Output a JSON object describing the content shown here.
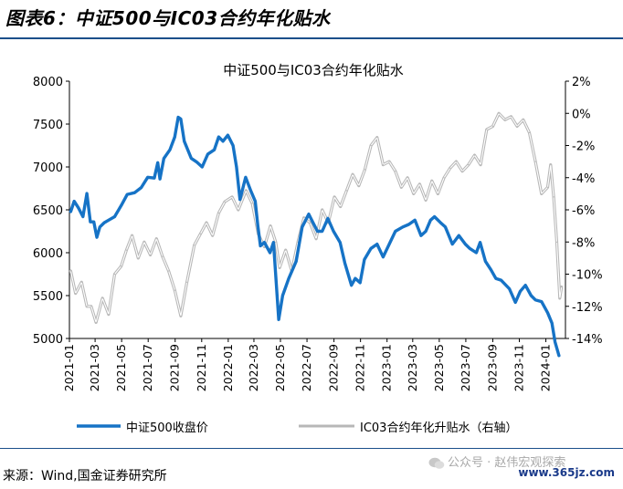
{
  "figure_title": "图表6：中证500与IC03合约年化贴水",
  "source": "来源：Wind,国金证券研究所",
  "watermark_text": "公众号 · 赵伟宏观探索",
  "site_stamp": "www.365jz.com",
  "colors": {
    "blue": "#1673c6",
    "gray": "#b7b7b7",
    "title_rule": "#1b4f8a"
  },
  "chart_data": {
    "type": "line",
    "title": "中证500与IC03合约年化贴水",
    "x_type": "date",
    "xlim": [
      "2021-01-01",
      "2024-02-15"
    ],
    "x_ticks": [
      "2021-01",
      "2021-03",
      "2021-05",
      "2021-07",
      "2021-09",
      "2021-11",
      "2022-01",
      "2022-03",
      "2022-05",
      "2022-07",
      "2022-09",
      "2022-11",
      "2023-01",
      "2023-03",
      "2023-05",
      "2023-07",
      "2023-09",
      "2023-11",
      "2024-01"
    ],
    "y_left": {
      "lim": [
        5000,
        8000
      ],
      "ticks": [
        "5000",
        "5500",
        "6000",
        "6500",
        "7000",
        "7500",
        "8000"
      ]
    },
    "y_right": {
      "lim": [
        -14,
        2
      ],
      "ticks": [
        "2%",
        "0%",
        "-2%",
        "-4%",
        "-6%",
        "-8%",
        "-10%",
        "-12%",
        "-14%"
      ]
    },
    "grid": false,
    "legend_position": "bottom",
    "series": [
      {
        "name": "中证500收盘价",
        "axis": "left",
        "color": "#1673c6",
        "points": [
          [
            "2021-01-04",
            6480
          ],
          [
            "2021-01-12",
            6600
          ],
          [
            "2021-01-22",
            6520
          ],
          [
            "2021-02-01",
            6420
          ],
          [
            "2021-02-10",
            6690
          ],
          [
            "2021-02-18",
            6360
          ],
          [
            "2021-02-26",
            6360
          ],
          [
            "2021-03-05",
            6180
          ],
          [
            "2021-03-12",
            6300
          ],
          [
            "2021-03-22",
            6350
          ],
          [
            "2021-04-01",
            6380
          ],
          [
            "2021-04-15",
            6420
          ],
          [
            "2021-04-30",
            6550
          ],
          [
            "2021-05-14",
            6680
          ],
          [
            "2021-05-31",
            6700
          ],
          [
            "2021-06-15",
            6760
          ],
          [
            "2021-06-30",
            6880
          ],
          [
            "2021-07-15",
            6870
          ],
          [
            "2021-07-23",
            7050
          ],
          [
            "2021-07-28",
            6860
          ],
          [
            "2021-08-06",
            7100
          ],
          [
            "2021-08-20",
            7200
          ],
          [
            "2021-08-31",
            7350
          ],
          [
            "2021-09-08",
            7580
          ],
          [
            "2021-09-14",
            7560
          ],
          [
            "2021-09-22",
            7300
          ],
          [
            "2021-10-08",
            7100
          ],
          [
            "2021-10-20",
            7060
          ],
          [
            "2021-11-02",
            7000
          ],
          [
            "2021-11-15",
            7150
          ],
          [
            "2021-11-30",
            7200
          ],
          [
            "2021-12-10",
            7350
          ],
          [
            "2021-12-20",
            7300
          ],
          [
            "2021-12-31",
            7370
          ],
          [
            "2022-01-12",
            7250
          ],
          [
            "2022-01-20",
            7000
          ],
          [
            "2022-01-28",
            6620
          ],
          [
            "2022-02-10",
            6880
          ],
          [
            "2022-02-22",
            6720
          ],
          [
            "2022-03-04",
            6600
          ],
          [
            "2022-03-10",
            6320
          ],
          [
            "2022-03-16",
            6080
          ],
          [
            "2022-03-25",
            6120
          ],
          [
            "2022-04-07",
            6000
          ],
          [
            "2022-04-15",
            6120
          ],
          [
            "2022-04-22",
            5600
          ],
          [
            "2022-04-27",
            5220
          ],
          [
            "2022-05-06",
            5500
          ],
          [
            "2022-05-20",
            5700
          ],
          [
            "2022-06-06",
            5900
          ],
          [
            "2022-06-20",
            6300
          ],
          [
            "2022-07-05",
            6450
          ],
          [
            "2022-07-15",
            6350
          ],
          [
            "2022-07-25",
            6250
          ],
          [
            "2022-08-05",
            6250
          ],
          [
            "2022-08-18",
            6400
          ],
          [
            "2022-08-31",
            6250
          ],
          [
            "2022-09-15",
            6120
          ],
          [
            "2022-09-26",
            5880
          ],
          [
            "2022-10-11",
            5620
          ],
          [
            "2022-10-20",
            5700
          ],
          [
            "2022-10-31",
            5650
          ],
          [
            "2022-11-10",
            5920
          ],
          [
            "2022-11-25",
            6050
          ],
          [
            "2022-12-09",
            6100
          ],
          [
            "2022-12-23",
            5950
          ],
          [
            "2023-01-06",
            6100
          ],
          [
            "2023-01-20",
            6250
          ],
          [
            "2023-02-06",
            6300
          ],
          [
            "2023-02-20",
            6330
          ],
          [
            "2023-03-06",
            6380
          ],
          [
            "2023-03-20",
            6200
          ],
          [
            "2023-03-31",
            6250
          ],
          [
            "2023-04-11",
            6380
          ],
          [
            "2023-04-20",
            6420
          ],
          [
            "2023-05-04",
            6350
          ],
          [
            "2023-05-15",
            6300
          ],
          [
            "2023-05-31",
            6100
          ],
          [
            "2023-06-15",
            6200
          ],
          [
            "2023-06-30",
            6100
          ],
          [
            "2023-07-10",
            6050
          ],
          [
            "2023-07-25",
            6000
          ],
          [
            "2023-08-03",
            6120
          ],
          [
            "2023-08-15",
            5900
          ],
          [
            "2023-08-28",
            5800
          ],
          [
            "2023-09-08",
            5700
          ],
          [
            "2023-09-20",
            5680
          ],
          [
            "2023-10-09",
            5580
          ],
          [
            "2023-10-23",
            5420
          ],
          [
            "2023-11-03",
            5550
          ],
          [
            "2023-11-15",
            5620
          ],
          [
            "2023-11-28",
            5500
          ],
          [
            "2023-12-08",
            5450
          ],
          [
            "2023-12-22",
            5430
          ],
          [
            "2024-01-05",
            5300
          ],
          [
            "2024-01-15",
            5180
          ],
          [
            "2024-01-22",
            4960
          ],
          [
            "2024-01-31",
            4800
          ]
        ]
      },
      {
        "name": "IC03合约年化升贴水（右轴）",
        "axis": "right",
        "color": "#b7b7b7",
        "points": [
          [
            "2021-01-04",
            -9.8
          ],
          [
            "2021-01-15",
            -11.2
          ],
          [
            "2021-01-29",
            -10.5
          ],
          [
            "2021-02-10",
            -12.0
          ],
          [
            "2021-02-20",
            -12.0
          ],
          [
            "2021-03-03",
            -13.0
          ],
          [
            "2021-03-18",
            -11.5
          ],
          [
            "2021-04-01",
            -12.5
          ],
          [
            "2021-04-15",
            -10.0
          ],
          [
            "2021-04-30",
            -9.5
          ],
          [
            "2021-05-12",
            -8.5
          ],
          [
            "2021-05-25",
            -7.6
          ],
          [
            "2021-06-08",
            -9.0
          ],
          [
            "2021-06-22",
            -8.0
          ],
          [
            "2021-07-06",
            -8.8
          ],
          [
            "2021-07-20",
            -7.8
          ],
          [
            "2021-08-03",
            -8.9
          ],
          [
            "2021-08-17",
            -9.8
          ],
          [
            "2021-08-31",
            -11.0
          ],
          [
            "2021-09-14",
            -12.6
          ],
          [
            "2021-09-28",
            -10.5
          ],
          [
            "2021-10-15",
            -8.2
          ],
          [
            "2021-10-29",
            -7.5
          ],
          [
            "2021-11-12",
            -6.8
          ],
          [
            "2021-11-26",
            -7.6
          ],
          [
            "2021-12-10",
            -6.2
          ],
          [
            "2021-12-24",
            -5.5
          ],
          [
            "2022-01-10",
            -5.2
          ],
          [
            "2022-01-24",
            -6.0
          ],
          [
            "2022-02-11",
            -4.8
          ],
          [
            "2022-02-25",
            -5.6
          ],
          [
            "2022-03-11",
            -7.5
          ],
          [
            "2022-03-25",
            -8.3
          ],
          [
            "2022-04-08",
            -7.0
          ],
          [
            "2022-04-20",
            -8.0
          ],
          [
            "2022-04-29",
            -9.6
          ],
          [
            "2022-05-13",
            -8.5
          ],
          [
            "2022-05-27",
            -9.8
          ],
          [
            "2022-06-10",
            -8.0
          ],
          [
            "2022-06-24",
            -6.5
          ],
          [
            "2022-07-08",
            -6.8
          ],
          [
            "2022-07-22",
            -7.8
          ],
          [
            "2022-08-05",
            -6.0
          ],
          [
            "2022-08-19",
            -6.8
          ],
          [
            "2022-09-02",
            -5.2
          ],
          [
            "2022-09-16",
            -5.8
          ],
          [
            "2022-09-30",
            -4.8
          ],
          [
            "2022-10-14",
            -3.8
          ],
          [
            "2022-10-28",
            -4.5
          ],
          [
            "2022-11-11",
            -3.5
          ],
          [
            "2022-11-25",
            -2.0
          ],
          [
            "2022-12-09",
            -1.5
          ],
          [
            "2022-12-23",
            -3.2
          ],
          [
            "2023-01-06",
            -3.0
          ],
          [
            "2023-01-20",
            -3.6
          ],
          [
            "2023-02-03",
            -4.6
          ],
          [
            "2023-02-17",
            -4.0
          ],
          [
            "2023-03-03",
            -5.0
          ],
          [
            "2023-03-17",
            -4.4
          ],
          [
            "2023-03-31",
            -5.4
          ],
          [
            "2023-04-14",
            -4.2
          ],
          [
            "2023-04-28",
            -5.0
          ],
          [
            "2023-05-12",
            -4.0
          ],
          [
            "2023-05-26",
            -3.4
          ],
          [
            "2023-06-09",
            -3.0
          ],
          [
            "2023-06-23",
            -3.6
          ],
          [
            "2023-07-07",
            -3.2
          ],
          [
            "2023-07-21",
            -2.6
          ],
          [
            "2023-08-04",
            -3.2
          ],
          [
            "2023-08-18",
            -1.0
          ],
          [
            "2023-09-01",
            -0.8
          ],
          [
            "2023-09-15",
            0.0
          ],
          [
            "2023-09-29",
            -0.4
          ],
          [
            "2023-10-13",
            -0.2
          ],
          [
            "2023-10-27",
            -0.8
          ],
          [
            "2023-11-10",
            -0.4
          ],
          [
            "2023-11-24",
            -1.2
          ],
          [
            "2023-12-08",
            -3.0
          ],
          [
            "2023-12-22",
            -5.0
          ],
          [
            "2024-01-05",
            -4.6
          ],
          [
            "2024-01-12",
            -3.2
          ],
          [
            "2024-01-19",
            -5.2
          ],
          [
            "2024-01-26",
            -8.0
          ],
          [
            "2024-02-02",
            -11.5
          ],
          [
            "2024-02-06",
            -10.8
          ]
        ]
      }
    ]
  }
}
